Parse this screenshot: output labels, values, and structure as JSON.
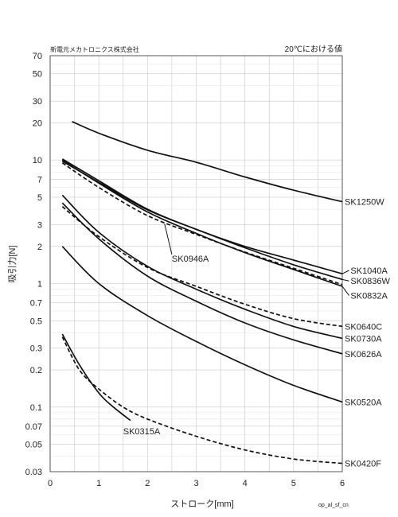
{
  "chart_data": {
    "type": "line",
    "maker": "新電元メカトロニクス株式会社",
    "condition": "20℃における値",
    "xlabel": "ストローク[mm]",
    "ylabel": "吸引力[N]",
    "footer_code": "op_al_sf_cn",
    "xlim": [
      0,
      6
    ],
    "ylim": [
      0.03,
      70
    ],
    "yscale": "log",
    "grid": true,
    "x_ticks": [
      "0",
      "1",
      "2",
      "3",
      "4",
      "5",
      "6"
    ],
    "y_ticks": [
      {
        "value": 70,
        "label": "70"
      },
      {
        "value": 50,
        "label": "50"
      },
      {
        "value": 30,
        "label": "30"
      },
      {
        "value": 20,
        "label": "20"
      },
      {
        "value": 10,
        "label": "10"
      },
      {
        "value": 7,
        "label": "7"
      },
      {
        "value": 5,
        "label": "5"
      },
      {
        "value": 3,
        "label": "3"
      },
      {
        "value": 2,
        "label": "2"
      },
      {
        "value": 1,
        "label": "1"
      },
      {
        "value": 0.7,
        "label": "0.7"
      },
      {
        "value": 0.5,
        "label": "0.5"
      },
      {
        "value": 0.3,
        "label": "0.3"
      },
      {
        "value": 0.2,
        "label": "0.2"
      },
      {
        "value": 0.1,
        "label": "0.1"
      },
      {
        "value": 0.07,
        "label": "0.07"
      },
      {
        "value": 0.05,
        "label": "0.05"
      },
      {
        "value": 0.03,
        "label": "0.03"
      }
    ],
    "y_minor_gridlines": [
      60,
      40,
      9,
      8,
      6,
      4,
      0.9,
      0.8,
      0.6,
      0.4,
      0.09,
      0.08,
      0.06,
      0.04
    ],
    "series": [
      {
        "name": "SK1250W",
        "dashed": false,
        "x": [
          0.45,
          1,
          2,
          3,
          4,
          5,
          6
        ],
        "y": [
          20.5,
          16.5,
          12,
          9.6,
          7.3,
          5.7,
          4.6
        ]
      },
      {
        "name": "SK1040A",
        "dashed": false,
        "x": [
          0.25,
          1,
          2,
          3,
          4,
          5,
          6
        ],
        "y": [
          10.2,
          6.8,
          4.0,
          2.75,
          2.0,
          1.55,
          1.2
        ]
      },
      {
        "name": "SK0836W",
        "dashed": false,
        "x": [
          0.25,
          1,
          2,
          3,
          4,
          5,
          6
        ],
        "y": [
          9.8,
          6.6,
          3.95,
          2.75,
          1.95,
          1.42,
          1.08
        ]
      },
      {
        "name": "SK0832A",
        "dashed": false,
        "x": [
          0.25,
          1,
          2,
          3,
          4,
          5,
          6
        ],
        "y": [
          10.0,
          6.5,
          3.8,
          2.55,
          1.78,
          1.3,
          0.95
        ]
      },
      {
        "name": "SK0946A",
        "dashed": true,
        "x": [
          0.25,
          1,
          2,
          3,
          4,
          5,
          6
        ],
        "y": [
          9.5,
          6.0,
          3.55,
          2.5,
          1.8,
          1.33,
          0.98
        ]
      },
      {
        "name": "SK0640C",
        "dashed": true,
        "x": [
          0.25,
          1,
          2,
          3,
          4,
          5,
          6
        ],
        "y": [
          4.2,
          2.4,
          1.35,
          0.95,
          0.68,
          0.52,
          0.45
        ]
      },
      {
        "name": "SK0730A",
        "dashed": false,
        "x": [
          0.25,
          1,
          2,
          3,
          4,
          5,
          6
        ],
        "y": [
          5.2,
          2.6,
          1.38,
          0.9,
          0.62,
          0.45,
          0.36
        ]
      },
      {
        "name": "SK0626A",
        "dashed": false,
        "x": [
          0.25,
          1,
          2,
          3,
          4,
          5,
          6
        ],
        "y": [
          4.5,
          2.3,
          1.15,
          0.72,
          0.48,
          0.35,
          0.27
        ]
      },
      {
        "name": "SK0520A",
        "dashed": false,
        "x": [
          0.25,
          1,
          2,
          3,
          4,
          5,
          6
        ],
        "y": [
          2.0,
          1.0,
          0.55,
          0.34,
          0.22,
          0.15,
          0.11
        ]
      },
      {
        "name": "SK0420F",
        "dashed": true,
        "x": [
          0.25,
          0.6,
          1,
          1.5,
          2,
          3,
          4,
          5,
          6
        ],
        "y": [
          0.37,
          0.2,
          0.14,
          0.1,
          0.08,
          0.058,
          0.045,
          0.038,
          0.035
        ]
      },
      {
        "name": "SK0315A",
        "dashed": false,
        "x": [
          0.25,
          0.6,
          1,
          1.3,
          1.65
        ],
        "y": [
          0.39,
          0.22,
          0.13,
          0.1,
          0.078
        ]
      }
    ],
    "series_labels": [
      {
        "name": "SK1250W",
        "x": 6.05,
        "y": 4.6,
        "leader": null
      },
      {
        "name": "SK1040A",
        "x": 6.17,
        "y": 1.28,
        "leader": [
          6.0,
          1.2,
          6.14,
          1.28
        ]
      },
      {
        "name": "SK0836W",
        "x": 6.17,
        "y": 1.05,
        "leader": [
          6.0,
          1.08,
          6.14,
          1.05
        ]
      },
      {
        "name": "SK0832A",
        "x": 6.17,
        "y": 0.8,
        "leader": [
          6.0,
          0.95,
          6.14,
          0.8
        ]
      },
      {
        "name": "SK0946A",
        "x": 2.5,
        "y": 1.6,
        "leader": [
          2.35,
          3.05,
          2.5,
          1.72
        ]
      },
      {
        "name": "SK0640C",
        "x": 6.05,
        "y": 0.45,
        "leader": null
      },
      {
        "name": "SK0730A",
        "x": 6.05,
        "y": 0.36,
        "leader": null
      },
      {
        "name": "SK0626A",
        "x": 6.05,
        "y": 0.27,
        "leader": null
      },
      {
        "name": "SK0520A",
        "x": 6.05,
        "y": 0.11,
        "leader": null
      },
      {
        "name": "SK0420F",
        "x": 6.05,
        "y": 0.035,
        "leader": null
      },
      {
        "name": "SK0315A",
        "x": 1.5,
        "y": 0.064,
        "leader": null
      }
    ]
  }
}
